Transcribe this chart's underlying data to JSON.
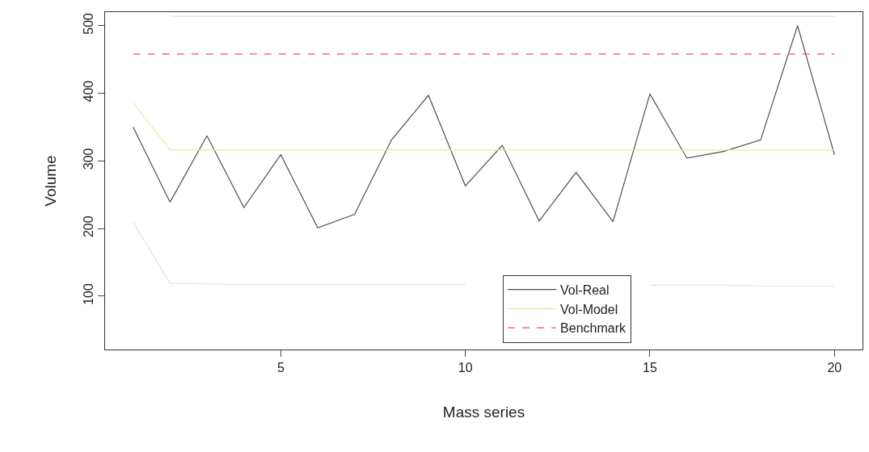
{
  "chart_data": {
    "type": "line",
    "xlabel": "Mass series",
    "ylabel": "Volume",
    "x": [
      1,
      2,
      3,
      4,
      5,
      6,
      7,
      8,
      9,
      10,
      11,
      12,
      13,
      14,
      15,
      16,
      17,
      18,
      19,
      20
    ],
    "xlim": [
      0.24,
      20.76
    ],
    "xticks": [
      5,
      10,
      15,
      20
    ],
    "ylim": [
      21,
      520
    ],
    "yticks": [
      100,
      200,
      300,
      400,
      500
    ],
    "legend": "bottom",
    "marker": "none",
    "series": [
      {
        "name": "Vol-Real",
        "color": "#505050",
        "line_style": "solid",
        "values": [
          350,
          239,
          337,
          231,
          309,
          201,
          221,
          331,
          397,
          263,
          323,
          211,
          283,
          210,
          399,
          304,
          314,
          331,
          500,
          309
        ]
      },
      {
        "name": "Vol-Model",
        "color": "#f3e3a3",
        "line_style": "solid",
        "values": [
          386,
          316,
          316,
          316,
          316,
          316,
          316,
          316,
          316,
          316,
          316,
          316,
          316,
          316,
          316,
          316,
          316,
          316,
          316,
          316
        ]
      },
      {
        "name": "Benchmark",
        "color": "#f05060",
        "line_style": "dashed",
        "values": [
          458,
          458,
          458,
          458,
          458,
          458,
          458,
          458,
          458,
          458,
          458,
          458,
          458,
          458,
          458,
          458,
          458,
          458,
          458,
          458
        ]
      },
      {
        "color": "#e2e2e2",
        "line_style": "solid",
        "values": [
          null,
          514,
          514,
          514,
          514,
          514,
          514,
          514,
          514,
          514,
          514,
          514,
          514,
          514,
          514,
          514,
          514,
          514,
          514,
          514
        ]
      },
      {
        "color": "#e2e2e2",
        "line_style": "solid",
        "values": [
          209,
          119,
          118,
          117,
          117,
          117,
          117,
          117,
          117,
          117,
          null,
          null,
          null,
          null,
          116,
          116,
          116,
          115,
          115,
          115
        ]
      }
    ]
  }
}
